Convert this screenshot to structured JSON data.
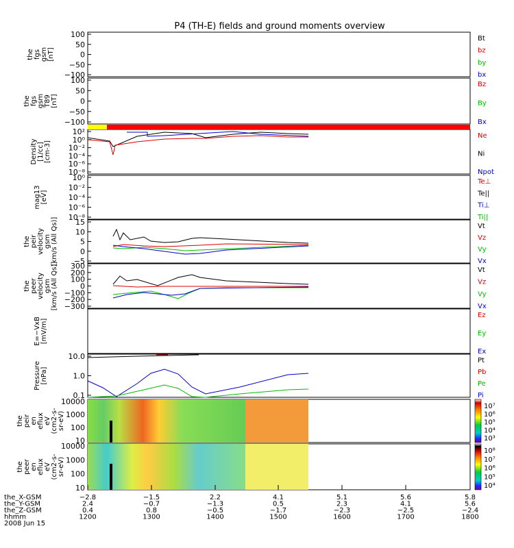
{
  "chart_data": {
    "type": "line",
    "title": "P4 (TH-E) fields and ground moments overview",
    "panels": [
      {
        "ylabel": [
          "the",
          "fgs",
          "gsm",
          "[nT]"
        ],
        "yticks": [
          "100",
          "50",
          "0",
          "−50",
          "−100"
        ],
        "legend": [
          {
            "text": "Bt",
            "color": "#000000"
          },
          {
            "text": "bz",
            "color": "#dd0000"
          },
          {
            "text": "by",
            "color": "#00bb00"
          },
          {
            "text": "bx",
            "color": "#0000cc"
          }
        ]
      },
      {
        "ylabel": [
          "the",
          "fgs",
          "gsm",
          "T89",
          "[nT]"
        ],
        "yticks": [
          "100",
          "50",
          "0",
          "−50",
          "−100"
        ],
        "legend": [
          {
            "text": "Bz",
            "color": "#dd0000"
          },
          {
            "text": "By",
            "color": "#00bb00"
          },
          {
            "text": "Bx",
            "color": "#0000cc"
          }
        ]
      },
      {
        "ylabel": [
          "Density",
          "[1/cc]",
          "[cm-3]"
        ],
        "yticks": [
          "10²",
          "10⁰",
          "10⁻²",
          "10⁻⁴",
          "10⁻⁶",
          "10⁻⁸"
        ],
        "legend": [
          {
            "text": "Ne",
            "color": "#dd0000"
          },
          {
            "text": "Ni",
            "color": "#000000"
          },
          {
            "text": "Npot",
            "color": "#0000cc"
          }
        ]
      },
      {
        "ylabel": [
          "mag13",
          "[eV]"
        ],
        "yticks": [
          "10⁰",
          "10⁻²",
          "10⁻⁴",
          "10⁻⁶",
          "10⁻⁸"
        ],
        "legend": [
          {
            "text": "Te⊥",
            "color": "#dd0000"
          },
          {
            "text": "Te||",
            "color": "#000000"
          },
          {
            "text": "Ti⊥",
            "color": "#0000cc"
          },
          {
            "text": "Ti||",
            "color": "#00bb00"
          }
        ]
      },
      {
        "ylabel": [
          "the",
          "peir",
          "velocity",
          "gsm",
          "[km/s (All Qs)]"
        ],
        "yticks": [
          "15",
          "10",
          "5",
          "0",
          "−5"
        ],
        "legend": [
          {
            "text": "Vt",
            "color": "#000000"
          },
          {
            "text": "Vz",
            "color": "#dd0000"
          },
          {
            "text": "Vy",
            "color": "#00bb00"
          },
          {
            "text": "Vx",
            "color": "#0000cc"
          }
        ]
      },
      {
        "ylabel": [
          "the",
          "peer",
          "velocity",
          "gsm",
          "[km/s (All Qs)]"
        ],
        "yticks": [
          "300",
          "200",
          "100",
          "0",
          "−100",
          "−200",
          "−300"
        ],
        "legend": [
          {
            "text": "Vt",
            "color": "#000000"
          },
          {
            "text": "Vz",
            "color": "#dd0000"
          },
          {
            "text": "Vy",
            "color": "#00bb00"
          },
          {
            "text": "Vx",
            "color": "#0000cc"
          }
        ]
      },
      {
        "ylabel": [
          "E=−VxB",
          "[mV/m]"
        ],
        "yticks": [],
        "legend": [
          {
            "text": "Ez",
            "color": "#dd0000"
          },
          {
            "text": "Ey",
            "color": "#00bb00"
          },
          {
            "text": "Ex",
            "color": "#0000cc"
          }
        ]
      },
      {
        "ylabel": [
          "Pressure",
          "[nPa]"
        ],
        "yticks": [
          "10.0",
          "1.0",
          "0.1"
        ],
        "legend": [
          {
            "text": "Pt",
            "color": "#000000"
          },
          {
            "text": "Pb",
            "color": "#dd0000"
          },
          {
            "text": "Pe",
            "color": "#00bb00"
          },
          {
            "text": "Pi",
            "color": "#0000cc"
          }
        ]
      },
      {
        "ylabel": [
          "the",
          "peir",
          "en",
          "eflux",
          "eV",
          "(cm2-s-",
          "sr-eV)"
        ],
        "yticks": [
          "10000",
          "1000",
          "100",
          "10"
        ],
        "colorbar": [
          "10⁷",
          "10⁶",
          "10⁵",
          "10⁴",
          "10³"
        ]
      },
      {
        "ylabel": [
          "the",
          "peer",
          "en",
          "eflux",
          "eV",
          "(cm2-s-",
          "sr-eV)"
        ],
        "yticks": [
          "10000",
          "1000",
          "100",
          "10"
        ],
        "colorbar": [
          "10⁸",
          "10⁷",
          "10⁶",
          "10⁵",
          "10⁴"
        ]
      }
    ],
    "xaxis": {
      "rows": [
        {
          "label": "the_X-GSM",
          "values": [
            "−2.8",
            "−1.5",
            "2.2",
            "4.1",
            "5.1",
            "5.6",
            "5.8"
          ]
        },
        {
          "label": "the_Y-GSM",
          "values": [
            "2.4",
            "−0.7",
            "−1.3",
            "0.5",
            "2.3",
            "4.1",
            "5.6"
          ]
        },
        {
          "label": "the_Z-GSM",
          "values": [
            "0.4",
            "0.8",
            "−0.5",
            "−1.7",
            "−2.3",
            "−2.5",
            "−2.4"
          ]
        },
        {
          "label": "hhmm",
          "values": [
            "1200",
            "1300",
            "1400",
            "1500",
            "1600",
            "1700",
            "1800"
          ]
        }
      ],
      "date": "2008 Jun 15"
    }
  }
}
